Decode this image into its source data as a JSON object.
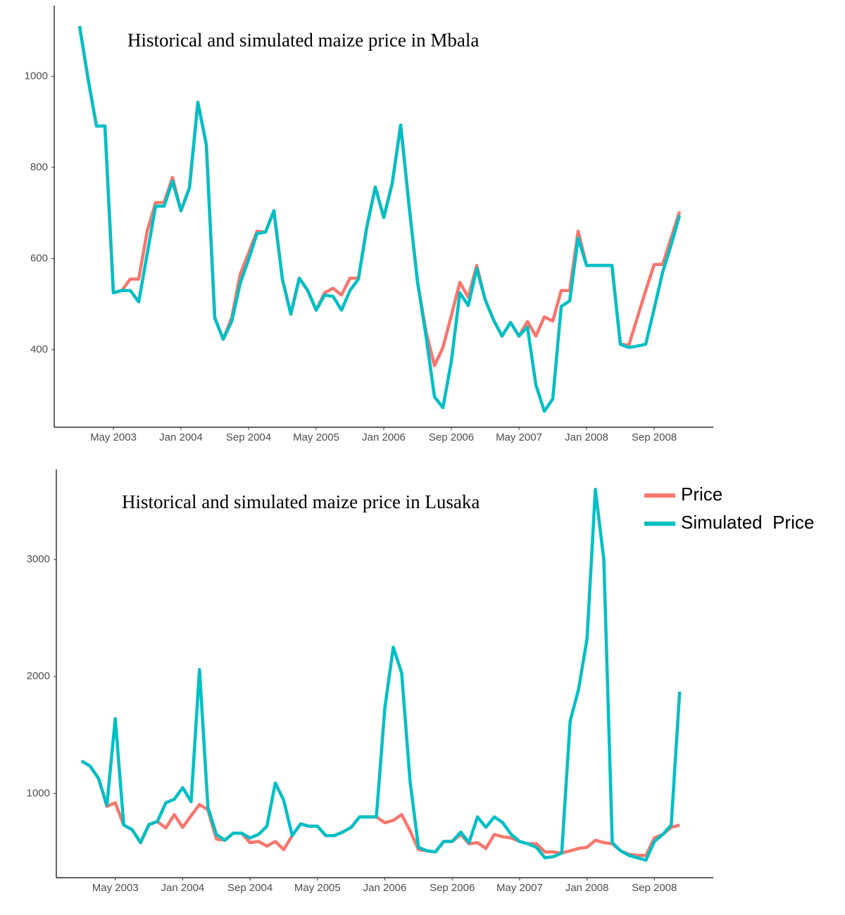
{
  "chart_data": [
    {
      "type": "line",
      "title": "Historical and simulated maize price in Mbala",
      "x": [
        "2003-01",
        "2003-02",
        "2003-03",
        "2003-04",
        "2003-05",
        "2003-06",
        "2003-07",
        "2003-08",
        "2003-09",
        "2003-10",
        "2003-11",
        "2003-12",
        "2004-01",
        "2004-02",
        "2004-03",
        "2004-04",
        "2004-05",
        "2004-06",
        "2004-07",
        "2004-08",
        "2004-09",
        "2004-10",
        "2004-11",
        "2004-12",
        "2005-01",
        "2005-02",
        "2005-03",
        "2005-04",
        "2005-05",
        "2005-06",
        "2005-07",
        "2005-08",
        "2005-09",
        "2005-10",
        "2005-11",
        "2005-12",
        "2006-01",
        "2006-02",
        "2006-03",
        "2006-04",
        "2006-05",
        "2006-06",
        "2006-07",
        "2006-08",
        "2006-09",
        "2006-10",
        "2006-11",
        "2006-12",
        "2007-01",
        "2007-02",
        "2007-03",
        "2007-04",
        "2007-05",
        "2007-06",
        "2007-07",
        "2007-08",
        "2007-09",
        "2007-10",
        "2007-11",
        "2007-12",
        "2008-01",
        "2008-02",
        "2008-03",
        "2008-04",
        "2008-05",
        "2008-06",
        "2008-07",
        "2008-08",
        "2008-09",
        "2008-10",
        "2008-11",
        "2008-12"
      ],
      "series": [
        {
          "color": "#F8766D",
          "values": [
            1110,
            995,
            891,
            891,
            525,
            530,
            555,
            555,
            660,
            723,
            723,
            778,
            705,
            755,
            943,
            850,
            470,
            423,
            470,
            565,
            612,
            660,
            658,
            705,
            555,
            478,
            557,
            530,
            487,
            525,
            535,
            520,
            557,
            557,
            670,
            757,
            690,
            765,
            893,
            715,
            548,
            440,
            365,
            405,
            475,
            548,
            515,
            585,
            510,
            465,
            430,
            460,
            430,
            462,
            430,
            472,
            463,
            530,
            530,
            660,
            585,
            585,
            585,
            585,
            412,
            410,
            470,
            530,
            587,
            587,
            645,
            703
          ]
        },
        {
          "color": "#00BFC4",
          "values": [
            1110,
            995,
            891,
            891,
            525,
            530,
            530,
            505,
            610,
            715,
            715,
            770,
            705,
            755,
            943,
            850,
            470,
            423,
            462,
            545,
            598,
            655,
            658,
            705,
            555,
            478,
            557,
            530,
            487,
            520,
            517,
            487,
            530,
            555,
            670,
            757,
            690,
            765,
            893,
            715,
            548,
            430,
            297,
            273,
            375,
            525,
            497,
            578,
            510,
            465,
            430,
            460,
            430,
            450,
            323,
            265,
            292,
            495,
            507,
            645,
            585,
            585,
            585,
            585,
            412,
            405,
            408,
            412,
            490,
            570,
            630,
            695
          ]
        }
      ],
      "xlim": [
        "2002-10",
        "2009-04"
      ],
      "xticks": [
        {
          "value": "2003-05",
          "label": "May 2003"
        },
        {
          "value": "2004-01",
          "label": "Jan 2004"
        },
        {
          "value": "2004-09",
          "label": "Sep 2004"
        },
        {
          "value": "2005-05",
          "label": "May 2005"
        },
        {
          "value": "2006-01",
          "label": "Jan 2006"
        },
        {
          "value": "2006-09",
          "label": "Sep 2006"
        },
        {
          "value": "2007-05",
          "label": "May 2007"
        },
        {
          "value": "2008-01",
          "label": "Jan 2008"
        },
        {
          "value": "2008-09",
          "label": "Sep 2008"
        }
      ],
      "ylim": [
        230,
        1155
      ],
      "yticks": [
        400,
        600,
        800,
        1000
      ]
    },
    {
      "type": "line",
      "title": "Historical and simulated maize price in Lusaka",
      "x": [
        "2003-01",
        "2003-02",
        "2003-03",
        "2003-04",
        "2003-05",
        "2003-06",
        "2003-07",
        "2003-08",
        "2003-09",
        "2003-10",
        "2003-11",
        "2003-12",
        "2004-01",
        "2004-02",
        "2004-03",
        "2004-04",
        "2004-05",
        "2004-06",
        "2004-07",
        "2004-08",
        "2004-09",
        "2004-10",
        "2004-11",
        "2004-12",
        "2005-01",
        "2005-02",
        "2005-03",
        "2005-04",
        "2005-05",
        "2005-06",
        "2005-07",
        "2005-08",
        "2005-09",
        "2005-10",
        "2005-11",
        "2005-12",
        "2006-01",
        "2006-02",
        "2006-03",
        "2006-04",
        "2006-05",
        "2006-06",
        "2006-07",
        "2006-08",
        "2006-09",
        "2006-10",
        "2006-11",
        "2006-12",
        "2007-01",
        "2007-02",
        "2007-03",
        "2007-04",
        "2007-05",
        "2007-06",
        "2007-07",
        "2007-08",
        "2007-09",
        "2007-10",
        "2007-11",
        "2007-12",
        "2008-01",
        "2008-02",
        "2008-03",
        "2008-04",
        "2008-05",
        "2008-06",
        "2008-07",
        "2008-08",
        "2008-09",
        "2008-10",
        "2008-11",
        "2008-12"
      ],
      "series": [
        {
          "name": "Price",
          "color": "#F8766D",
          "values": [
            1277,
            1235,
            1130,
            890,
            920,
            730,
            690,
            580,
            735,
            760,
            705,
            820,
            710,
            810,
            905,
            860,
            610,
            600,
            660,
            660,
            580,
            590,
            550,
            590,
            520,
            640,
            740,
            720,
            720,
            640,
            640,
            670,
            710,
            800,
            800,
            800,
            750,
            770,
            820,
            680,
            520,
            510,
            500,
            590,
            590,
            650,
            570,
            580,
            530,
            650,
            630,
            620,
            590,
            570,
            570,
            500,
            500,
            490,
            510,
            530,
            540,
            600,
            580,
            570,
            510,
            480,
            470,
            470,
            620,
            650,
            710,
            730
          ]
        },
        {
          "name": "Simulated  Price",
          "color": "#00BFC4",
          "values": [
            1277,
            1235,
            1130,
            900,
            1640,
            730,
            690,
            580,
            735,
            760,
            920,
            950,
            1050,
            930,
            2060,
            880,
            650,
            600,
            660,
            660,
            620,
            650,
            720,
            1090,
            940,
            640,
            740,
            720,
            720,
            640,
            640,
            670,
            710,
            800,
            800,
            800,
            1730,
            2250,
            2030,
            1100,
            540,
            510,
            500,
            590,
            590,
            670,
            580,
            800,
            710,
            800,
            750,
            650,
            590,
            570,
            540,
            450,
            460,
            490,
            1620,
            1890,
            2320,
            3600,
            3000,
            580,
            510,
            470,
            450,
            430,
            590,
            650,
            730,
            1870
          ]
        }
      ],
      "xlim": [
        "2002-10",
        "2009-04"
      ],
      "xticks": [
        {
          "value": "2003-05",
          "label": "May 2003"
        },
        {
          "value": "2004-01",
          "label": "Jan 2004"
        },
        {
          "value": "2004-09",
          "label": "Sep 2004"
        },
        {
          "value": "2005-05",
          "label": "May 2005"
        },
        {
          "value": "2006-01",
          "label": "Jan 2006"
        },
        {
          "value": "2006-09",
          "label": "Sep 2006"
        },
        {
          "value": "2007-05",
          "label": "May 2007"
        },
        {
          "value": "2008-01",
          "label": "Jan 2008"
        },
        {
          "value": "2008-09",
          "label": "Sep 2008"
        }
      ],
      "ylim": [
        280,
        3770
      ],
      "yticks": [
        1000,
        2000,
        3000
      ],
      "legend": "top-right"
    }
  ]
}
